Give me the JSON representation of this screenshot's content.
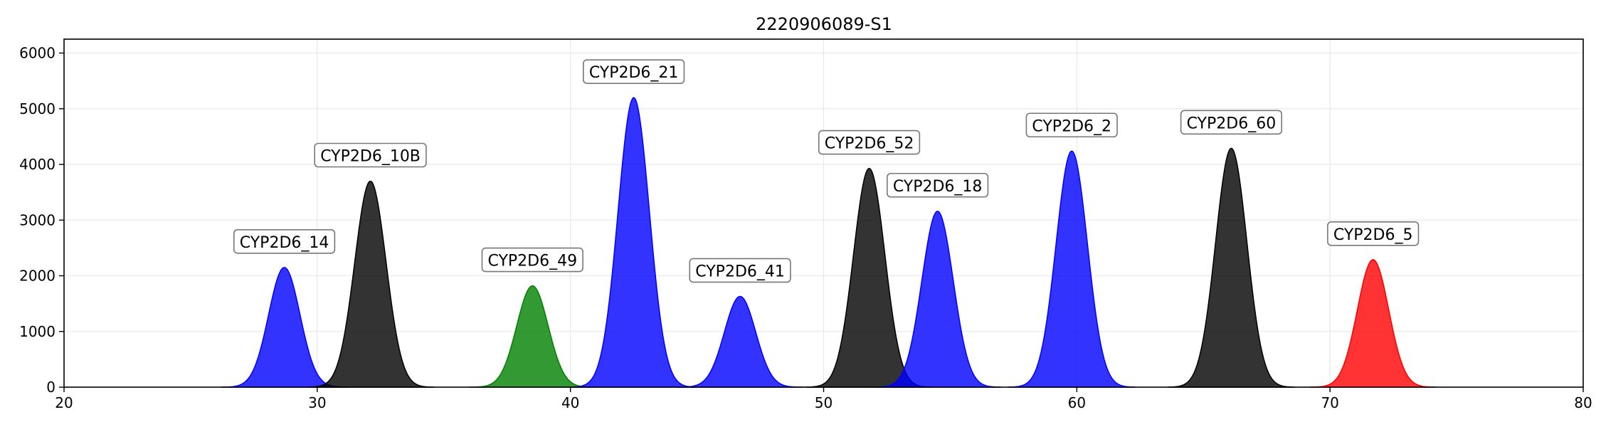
{
  "chart_data": {
    "type": "area",
    "title": "2220906089-S1",
    "xlabel": "",
    "ylabel": "",
    "xlim": [
      20,
      80
    ],
    "ylim": [
      0,
      6250
    ],
    "xticks": [
      20,
      30,
      40,
      50,
      60,
      70,
      80
    ],
    "yticks": [
      0,
      1000,
      2000,
      3000,
      4000,
      5000,
      6000
    ],
    "grid": true,
    "peaks": [
      {
        "label": "CYP2D6_14",
        "center": 28.7,
        "height": 2150,
        "sigma": 0.62,
        "color": "#0000ff"
      },
      {
        "label": "CYP2D6_10B",
        "center": 32.1,
        "height": 3700,
        "sigma": 0.62,
        "color": "#000000"
      },
      {
        "label": "CYP2D6_49",
        "center": 38.5,
        "height": 1820,
        "sigma": 0.62,
        "color": "#008000"
      },
      {
        "label": "CYP2D6_21",
        "center": 42.5,
        "height": 5200,
        "sigma": 0.62,
        "color": "#0000ff"
      },
      {
        "label": "CYP2D6_41",
        "center": 46.7,
        "height": 1630,
        "sigma": 0.62,
        "color": "#0000ff"
      },
      {
        "label": "CYP2D6_52",
        "center": 51.8,
        "height": 3930,
        "sigma": 0.62,
        "color": "#000000"
      },
      {
        "label": "CYP2D6_18",
        "center": 54.5,
        "height": 3160,
        "sigma": 0.62,
        "color": "#0000ff"
      },
      {
        "label": "CYP2D6_2",
        "center": 59.8,
        "height": 4240,
        "sigma": 0.62,
        "color": "#0000ff"
      },
      {
        "label": "CYP2D6_60",
        "center": 66.1,
        "height": 4290,
        "sigma": 0.62,
        "color": "#000000"
      },
      {
        "label": "CYP2D6_5",
        "center": 71.7,
        "height": 2290,
        "sigma": 0.62,
        "color": "#ff0000"
      }
    ]
  }
}
